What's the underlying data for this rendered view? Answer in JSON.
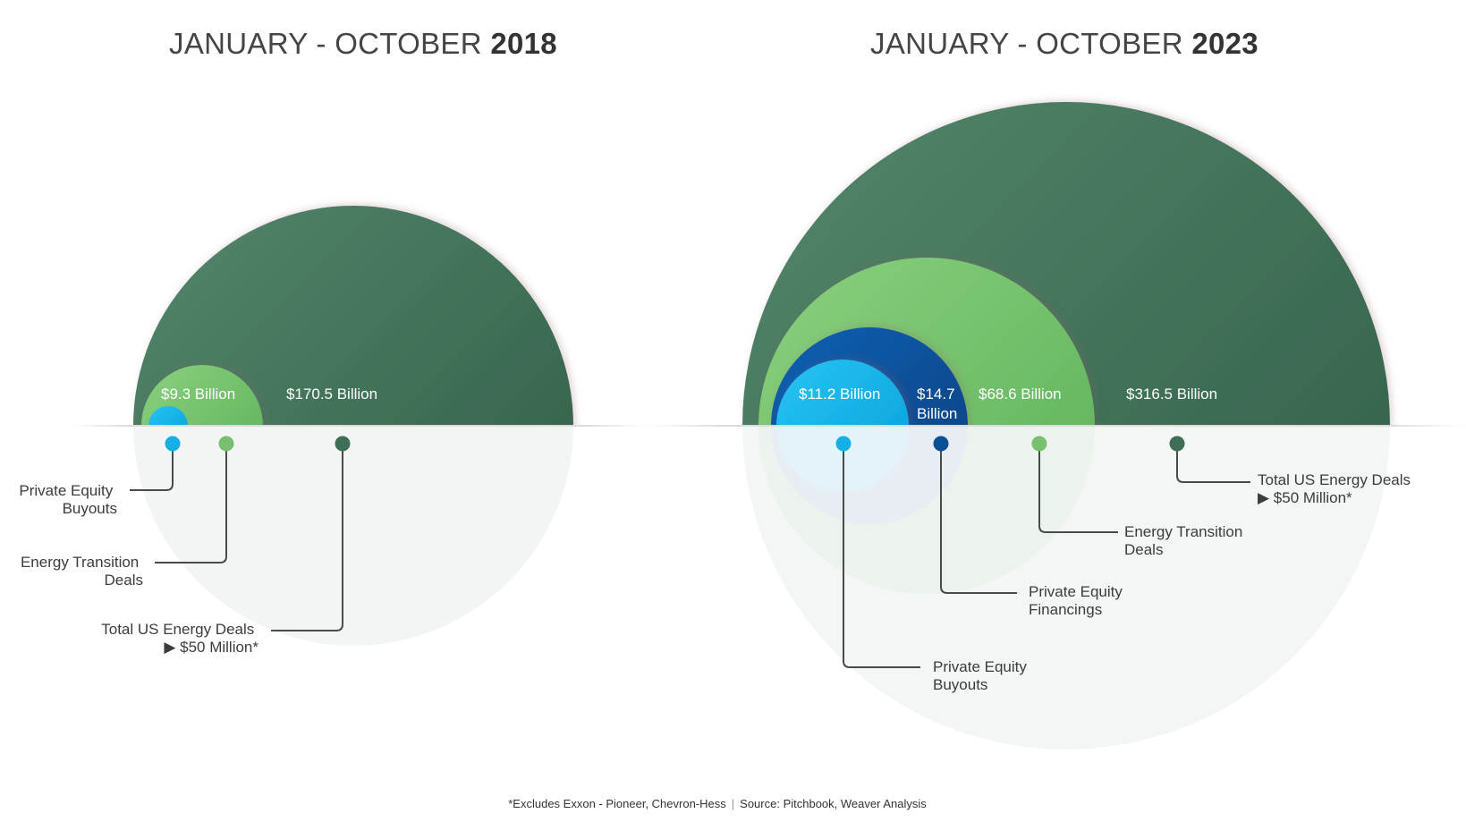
{
  "chart_data": [
    {
      "type": "bubble",
      "title_prefix": "JANUARY - OCTOBER ",
      "title_year": "2018",
      "series": [
        {
          "name": "Total US Energy Deals",
          "name_line2": "▶ $50 Million*",
          "value": 170.5,
          "value_label": "$170.5 Billion",
          "color": "#3e6e55"
        },
        {
          "name": "Energy Transition",
          "name_line2": "Deals",
          "value": 9.3,
          "value_label": "$9.3 Billion",
          "color": "#77c06f"
        },
        {
          "name": "Private Equity",
          "name_line2": "Buyouts",
          "value": null,
          "value_label": "",
          "color": "#16aee6"
        }
      ]
    },
    {
      "type": "bubble",
      "title_prefix": "JANUARY - OCTOBER ",
      "title_year": "2023",
      "series": [
        {
          "name": "Total US Energy Deals",
          "name_line2": "▶ $50 Million*",
          "value": 316.5,
          "value_label": "$316.5 Billion",
          "color": "#3e6e55"
        },
        {
          "name": "Energy Transition",
          "name_line2": "Deals",
          "value": 68.6,
          "value_label": "$68.6 Billion",
          "color": "#77c06f"
        },
        {
          "name": "Private Equity",
          "name_line2": "Financings",
          "value": 14.7,
          "value_label": "$14.7",
          "value_label_line2": "Billion",
          "color": "#0a4f98"
        },
        {
          "name": "Private Equity",
          "name_line2": "Buyouts",
          "value": 11.2,
          "value_label": "$11.2 Billion",
          "color": "#16aee6"
        }
      ]
    }
  ],
  "footnote": "*Excludes Exxon - Pioneer, Chevron-Hess",
  "footnote_separator": "|",
  "source": "Source: Pitchbook, Weaver Analysis"
}
